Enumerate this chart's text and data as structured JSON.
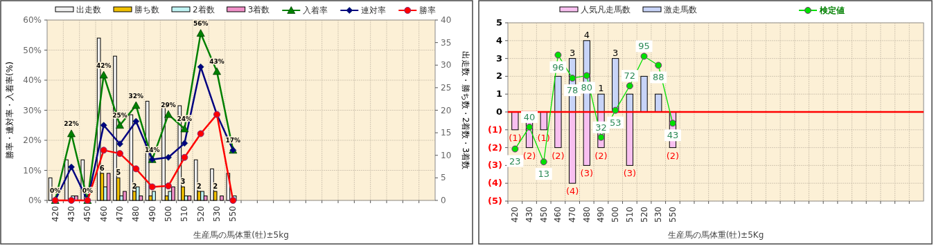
{
  "chart_data": [
    {
      "type": "bar",
      "xlabel": "生産馬の馬体重(牡)±5kg",
      "ylabel": "勝率・連対率・入着率(%)",
      "y2label": "出走数・勝ち数・2着数・3着数",
      "categories": [
        "420",
        "430",
        "450",
        "460",
        "470",
        "480",
        "490",
        "500",
        "510",
        "520",
        "530",
        "550",
        null,
        null,
        null,
        null,
        null,
        null,
        null,
        null,
        null,
        null,
        null,
        null
      ],
      "ylim": [
        0,
        60
      ],
      "yticks": [
        {
          "value": 0,
          "label": "0%"
        },
        {
          "value": 10,
          "label": "10%"
        },
        {
          "value": 20,
          "label": "20%"
        },
        {
          "value": 30,
          "label": "30%"
        },
        {
          "value": 40,
          "label": "40%"
        },
        {
          "value": 50,
          "label": "50%"
        },
        {
          "value": 60,
          "label": "60%"
        }
      ],
      "y2lim": [
        0,
        40
      ],
      "y2ticks": [
        0,
        5,
        10,
        15,
        20,
        25,
        30,
        35,
        40
      ],
      "grid": true,
      "legend": "top",
      "series": [
        {
          "name": "出走数",
          "color": "#f0f0f0",
          "axis": "y2",
          "values": [
            5,
            9,
            9,
            36,
            32,
            19,
            22,
            21,
            21,
            9,
            7,
            6,
            null,
            null,
            null,
            null,
            null,
            null,
            null,
            null,
            null,
            null,
            null,
            null
          ]
        },
        {
          "name": "勝ち数",
          "color": "#f0c000",
          "axis": "y2",
          "values": [
            0,
            0,
            0,
            6,
            5,
            2,
            1,
            1,
            3,
            2,
            2,
            0,
            null,
            null,
            null,
            null,
            null,
            null,
            null,
            null,
            null,
            null,
            null,
            null
          ],
          "value_labels": [
            null,
            null,
            null,
            "6",
            "5",
            "2",
            null,
            null,
            "3",
            "2",
            "2",
            null,
            null,
            null,
            null,
            null,
            null,
            null,
            null,
            null,
            null,
            null,
            null,
            null
          ]
        },
        {
          "name": "2着数",
          "color": "#c0f4f4",
          "axis": "y2",
          "values": [
            0,
            1,
            0,
            3,
            1,
            3,
            2,
            2,
            1,
            2,
            0,
            1,
            null,
            null,
            null,
            null,
            null,
            null,
            null,
            null,
            null,
            null,
            null,
            null
          ]
        },
        {
          "name": "3着数",
          "color": "#f090c8",
          "axis": "y2",
          "values": [
            0,
            1,
            0,
            6,
            2,
            1,
            0,
            3,
            1,
            1,
            1,
            0,
            null,
            null,
            null,
            null,
            null,
            null,
            null,
            null,
            null,
            null,
            null,
            null
          ]
        },
        {
          "name": "入着率",
          "type": "line",
          "color": "#008000",
          "marker": "triangle",
          "values": [
            0,
            22.2,
            0,
            41.7,
            25,
            31.6,
            13.6,
            28.6,
            23.8,
            55.6,
            42.9,
            16.7,
            null,
            null,
            null,
            null,
            null,
            null,
            null,
            null,
            null,
            null,
            null,
            null
          ],
          "value_labels": [
            "0%",
            "22%",
            "0%",
            "42%",
            "25%",
            "32%",
            "14%",
            "29%",
            "24%",
            "56%",
            "43%",
            "17%",
            null,
            null,
            null,
            null,
            null,
            null,
            null,
            null,
            null,
            null,
            null,
            null
          ]
        },
        {
          "name": "連対率",
          "type": "line",
          "color": "#000080",
          "marker": "diamond",
          "values": [
            0,
            11.1,
            0,
            25,
            18.8,
            26.3,
            13.6,
            14.3,
            19,
            44.4,
            28.6,
            16.7,
            null,
            null,
            null,
            null,
            null,
            null,
            null,
            null,
            null,
            null,
            null,
            null
          ]
        },
        {
          "name": "勝率",
          "type": "line",
          "color": "#ff0000",
          "marker": "circle",
          "values": [
            0,
            0,
            0,
            16.7,
            15.6,
            10.5,
            4.5,
            4.8,
            14.3,
            22.2,
            28.6,
            0,
            null,
            null,
            null,
            null,
            null,
            null,
            null,
            null,
            null,
            null,
            null,
            null
          ]
        }
      ]
    },
    {
      "type": "bar",
      "stacked": true,
      "xlabel": "生産馬の馬体重(牡)±5Kg",
      "categories": [
        "420",
        "430",
        "450",
        "460",
        "470",
        "480",
        "490",
        "500",
        "510",
        "520",
        "530",
        "550",
        null,
        null,
        null,
        null,
        null,
        null,
        null,
        null,
        null,
        null,
        null,
        null,
        null,
        null,
        null,
        null,
        null
      ],
      "ylim": [
        -5,
        5
      ],
      "yticks": [
        {
          "value": -5,
          "label": "(5)"
        },
        {
          "value": -4,
          "label": "(4)"
        },
        {
          "value": -3,
          "label": "(3)"
        },
        {
          "value": -2,
          "label": "(2)"
        },
        {
          "value": -1,
          "label": "(1)"
        },
        0,
        1,
        2,
        3,
        4,
        5
      ],
      "y2lim": [
        -17.5,
        121
      ],
      "grid": true,
      "legend": "top",
      "ref_lines": [
        {
          "axis": "y",
          "value": 0,
          "color": "#ff0000"
        }
      ],
      "series": [
        {
          "name": "人気凡走馬数",
          "color": "#f8c0f0",
          "values": [
            -1,
            -2,
            -1,
            -2,
            -4,
            -3,
            -2,
            0,
            -3,
            0,
            0,
            -2,
            null,
            null,
            null,
            null,
            null,
            null,
            null,
            null,
            null,
            null,
            null,
            null,
            null,
            null,
            null,
            null,
            null
          ],
          "value_labels": [
            "(1)",
            "(2)",
            "(1)",
            "(2)",
            "(4)",
            "(3)",
            "(2)",
            null,
            "(3)",
            null,
            null,
            "(2)",
            null,
            null,
            null,
            null,
            null,
            null,
            null,
            null,
            null,
            null,
            null,
            null,
            null,
            null,
            null,
            null,
            null
          ]
        },
        {
          "name": "激走馬数",
          "color": "#c8d4f8",
          "values": [
            0,
            0,
            0,
            2,
            3,
            4,
            1,
            3,
            1,
            2,
            1,
            0,
            null,
            null,
            null,
            null,
            null,
            null,
            null,
            null,
            null,
            null,
            null,
            null,
            null,
            null,
            null,
            null,
            null
          ],
          "value_labels": [
            null,
            null,
            null,
            null,
            "3",
            "4",
            "1",
            "3",
            null,
            null,
            null,
            null,
            null,
            null,
            null,
            null,
            null,
            null,
            null,
            null,
            null,
            null,
            null,
            null,
            null,
            null,
            null,
            null,
            null
          ]
        },
        {
          "name": "検定値",
          "type": "line",
          "axis": "y2",
          "color": "#00e000",
          "marker": "circle",
          "values": [
            23,
            40,
            13,
            96,
            78,
            80,
            32,
            53,
            72,
            95,
            88,
            43,
            null,
            null,
            null,
            null,
            null,
            null,
            null,
            null,
            null,
            null,
            null,
            null,
            null,
            null,
            null,
            null,
            null
          ],
          "value_labels": [
            "23",
            "40",
            "13",
            "96",
            "78",
            "80",
            "32",
            "53",
            "72",
            "95",
            "88",
            "43",
            null,
            null,
            null,
            null,
            null,
            null,
            null,
            null,
            null,
            null,
            null,
            null,
            null,
            null,
            null,
            null,
            null
          ]
        }
      ]
    }
  ]
}
